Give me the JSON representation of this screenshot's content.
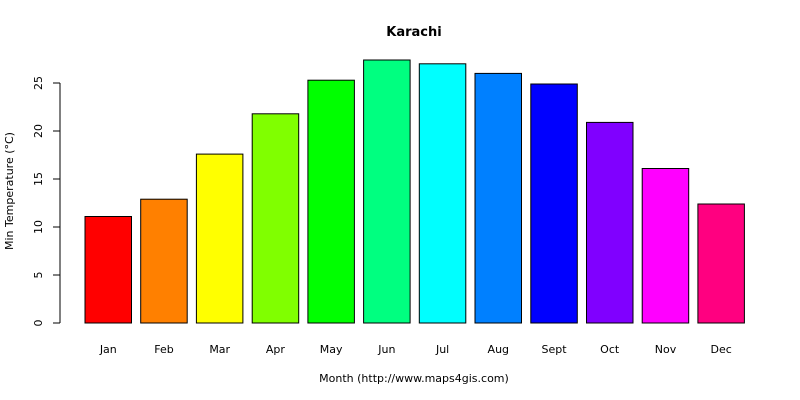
{
  "chart_data": {
    "type": "bar",
    "title": "Karachi",
    "xlabel": "Month (http://www.maps4gis.com)",
    "ylabel": "Min Temperature (°C)",
    "categories": [
      "Jan",
      "Feb",
      "Mar",
      "Apr",
      "May",
      "Jun",
      "Jul",
      "Aug",
      "Sept",
      "Oct",
      "Nov",
      "Dec"
    ],
    "values": [
      11.1,
      12.9,
      17.6,
      21.8,
      25.3,
      27.4,
      27.0,
      26.0,
      24.9,
      20.9,
      16.1,
      12.4
    ],
    "colors": [
      "#FF0000",
      "#FF8000",
      "#FFFF00",
      "#80FF00",
      "#00FF00",
      "#00FF80",
      "#00FFFF",
      "#0080FF",
      "#0000FF",
      "#8000FF",
      "#FF00FF",
      "#FF0080"
    ],
    "ylim": [
      0,
      27.4
    ],
    "yticks": [
      0,
      5,
      10,
      15,
      20,
      25
    ],
    "grid": false,
    "legend": "none"
  }
}
